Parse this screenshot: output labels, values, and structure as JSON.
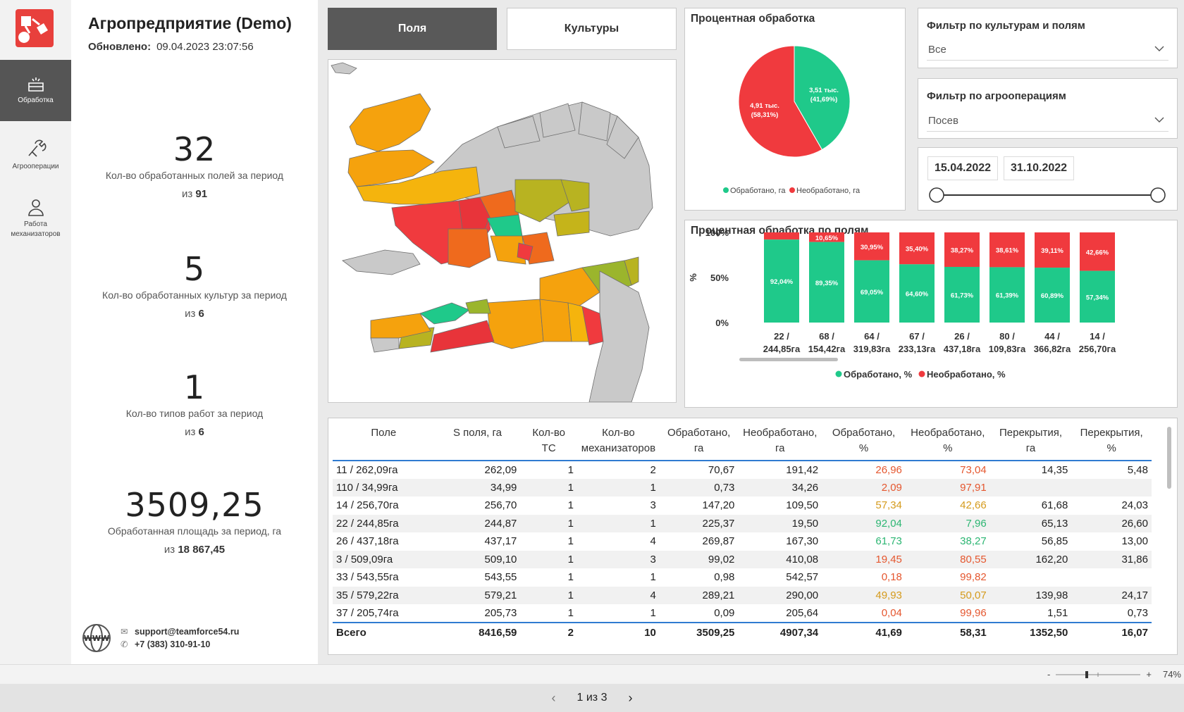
{
  "nav": [
    {
      "label": "Обработка",
      "icon": "field-icon"
    },
    {
      "label": "Агрооперации",
      "icon": "tools-icon"
    },
    {
      "label": "Работа механизаторов",
      "icon": "user-icon"
    }
  ],
  "header": {
    "title": "Агропредприятие (Demo)",
    "updated_label": "Обновлено:",
    "updated_value": "09.04.2023 23:07:56"
  },
  "kpis": [
    {
      "value": "32",
      "label": "Кол-во обработанных полей за период",
      "total_prefix": "из",
      "total": "91"
    },
    {
      "value": "5",
      "label": "Кол-во обработанных культур за период",
      "total_prefix": "из",
      "total": "6"
    },
    {
      "value": "1",
      "label": "Кол-во типов работ за период",
      "total_prefix": "из",
      "total": "6"
    },
    {
      "value": "3509,25",
      "label": "Обработанная площадь за период, га",
      "total_prefix": "из",
      "total": "18 867,45"
    }
  ],
  "contacts": {
    "email": "support@teamforce54.ru",
    "phone": "+7 (383) 310-91-10",
    "icon": "www-icon"
  },
  "tabs": {
    "fields": "Поля",
    "crops": "Культуры"
  },
  "filters": {
    "crops_title": "Фильтр по культурам и полям",
    "crops_value": "Все",
    "ops_title": "Фильтр по агрооперациям",
    "ops_value": "Посев",
    "date_from": "15.04.2022",
    "date_to": "31.10.2022"
  },
  "pie": {
    "title": "Процентная обработка",
    "slices": [
      {
        "name": "Обработано, га",
        "value": 3509.25,
        "label_line1": "3,51 тыс.",
        "label_line2": "(41,69%)",
        "color": "#1fc98a"
      },
      {
        "name": "Необработано, га",
        "value": 4907.34,
        "label_line1": "4,91 тыс.",
        "label_line2": "(58,31%)",
        "color": "#f03a3e"
      }
    ]
  },
  "chart_data": {
    "type": "bar",
    "stacked": true,
    "title": "Процентная обработка по полям",
    "ylabel": "%",
    "ylim": [
      0,
      100
    ],
    "yticks": [
      "0%",
      "50%",
      "100%"
    ],
    "categories": [
      [
        "22 /",
        "244,85га"
      ],
      [
        "68 /",
        "154,42га"
      ],
      [
        "64 /",
        "319,83га"
      ],
      [
        "67 /",
        "233,13га"
      ],
      [
        "26 /",
        "437,18га"
      ],
      [
        "80 /",
        "109,83га"
      ],
      [
        "44 /",
        "366,82га"
      ],
      [
        "14 /",
        "256,70га"
      ]
    ],
    "series": [
      {
        "name": "Обработано, %",
        "color": "#1fc98a",
        "values": [
          92.04,
          89.35,
          69.05,
          64.6,
          61.73,
          61.39,
          60.89,
          57.34
        ],
        "labels": [
          "92,04%",
          "89,35%",
          "69,05%",
          "64,60%",
          "61,73%",
          "61,39%",
          "60,89%",
          "57,34%"
        ]
      },
      {
        "name": "Необработано, %",
        "color": "#f03a3e",
        "values": [
          7.96,
          10.65,
          30.95,
          35.4,
          38.27,
          38.61,
          39.11,
          42.66
        ],
        "labels": [
          "",
          "10,65%",
          "30,95%",
          "35,40%",
          "38,27%",
          "38,61%",
          "39,11%",
          "42,66%"
        ]
      }
    ],
    "legend": "bottom"
  },
  "table": {
    "columns": [
      [
        "Поле"
      ],
      [
        "S поля, га"
      ],
      [
        "Кол-во",
        "ТС"
      ],
      [
        "Кол-во",
        "механизаторов"
      ],
      [
        "Обработано,",
        "га"
      ],
      [
        "Необработано,",
        "га"
      ],
      [
        "Обработано,",
        "%"
      ],
      [
        "Необработано,",
        "%"
      ],
      [
        "Перекрытия,",
        "га"
      ],
      [
        "Перекрытия,",
        "%"
      ]
    ],
    "rows": [
      [
        "11 / 262,09га",
        "262,09",
        "1",
        "2",
        "70,67",
        "191,42",
        "26,96",
        "73,04",
        "14,35",
        "5,48"
      ],
      [
        "110 / 34,99га",
        "34,99",
        "1",
        "1",
        "0,73",
        "34,26",
        "2,09",
        "97,91",
        "",
        ""
      ],
      [
        "14 / 256,70га",
        "256,70",
        "1",
        "3",
        "147,20",
        "109,50",
        "57,34",
        "42,66",
        "61,68",
        "24,03"
      ],
      [
        "22 / 244,85га",
        "244,87",
        "1",
        "1",
        "225,37",
        "19,50",
        "92,04",
        "7,96",
        "65,13",
        "26,60"
      ],
      [
        "26 / 437,18га",
        "437,17",
        "1",
        "4",
        "269,87",
        "167,30",
        "61,73",
        "38,27",
        "56,85",
        "13,00"
      ],
      [
        "3 / 509,09га",
        "509,10",
        "1",
        "3",
        "99,02",
        "410,08",
        "19,45",
        "80,55",
        "162,20",
        "31,86"
      ],
      [
        "33 / 543,55га",
        "543,55",
        "1",
        "1",
        "0,98",
        "542,57",
        "0,18",
        "99,82",
        "",
        ""
      ],
      [
        "35 / 579,22га",
        "579,21",
        "1",
        "4",
        "289,21",
        "290,00",
        "49,93",
        "50,07",
        "139,98",
        "24,17"
      ],
      [
        "37 / 205,74га",
        "205,73",
        "1",
        "1",
        "0,09",
        "205,64",
        "0,04",
        "99,96",
        "1,51",
        "0,73"
      ]
    ],
    "total": [
      "Всего",
      "8416,59",
      "2",
      "10",
      "3509,25",
      "4907,34",
      "41,69",
      "58,31",
      "1352,50",
      "16,07"
    ]
  },
  "footer": {
    "zoom": "74%",
    "page": "1 из 3"
  }
}
